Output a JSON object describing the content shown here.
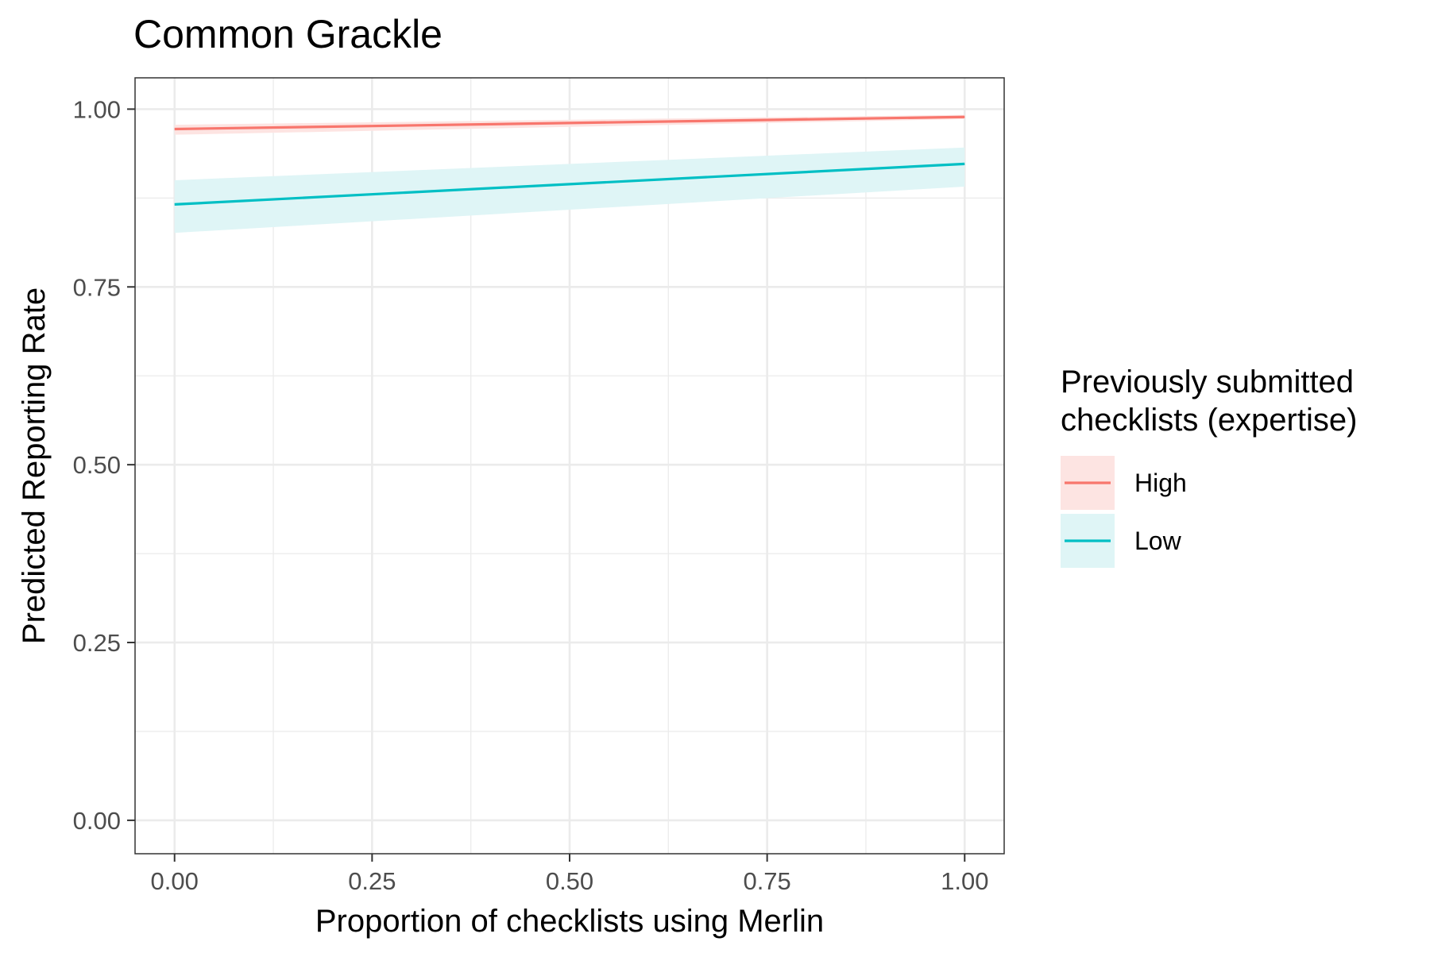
{
  "chart_data": {
    "type": "line",
    "title": "Common Grackle",
    "xlabel": "Proportion of checklists using Merlin",
    "ylabel": "Predicted Reporting Rate",
    "xlim": [
      -0.05,
      1.05
    ],
    "ylim": [
      -0.047,
      1.044
    ],
    "x_ticks": [
      0,
      0.25,
      0.5,
      0.75,
      1
    ],
    "x_tick_labels": [
      "0.00",
      "0.25",
      "0.50",
      "0.75",
      "1.00"
    ],
    "y_ticks": [
      0,
      0.25,
      0.5,
      0.75,
      1
    ],
    "y_tick_labels": [
      "0.00",
      "0.25",
      "0.50",
      "0.75",
      "1.00"
    ],
    "grid": true,
    "legend": {
      "title_lines": [
        "Previously submitted",
        "checklists (expertise)"
      ],
      "placement": "right"
    },
    "series": [
      {
        "name": "High",
        "color": "#f8766d",
        "fill": "#fde4e2",
        "x": [
          0,
          1
        ],
        "y": [
          0.972,
          0.989
        ],
        "ci_lower": [
          0.964,
          0.986
        ],
        "ci_upper": [
          0.978,
          0.992
        ]
      },
      {
        "name": "Low",
        "color": "#00bfc4",
        "fill": "#dff5f6",
        "x": [
          0,
          1
        ],
        "y": [
          0.866,
          0.923
        ],
        "ci_lower": [
          0.826,
          0.891
        ],
        "ci_upper": [
          0.9,
          0.946
        ]
      }
    ]
  }
}
